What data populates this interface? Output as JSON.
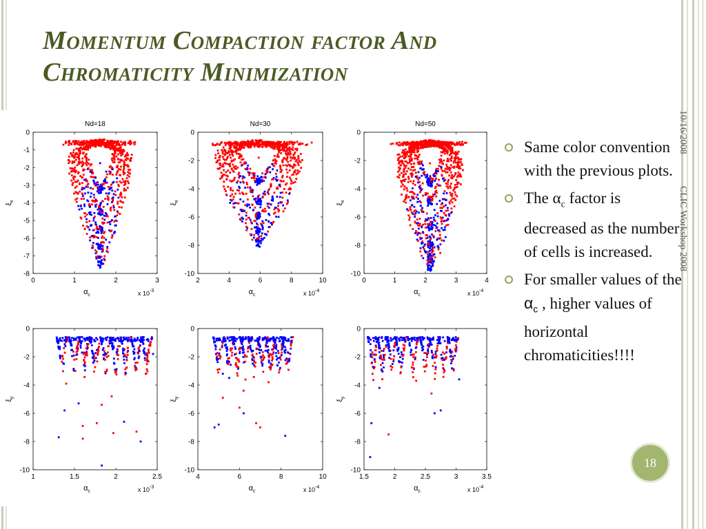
{
  "title_line1": "Momentum Compaction factor And",
  "title_line2": "Chromaticity Minimization",
  "date": "10/16/2008",
  "event": "CLIC Workshop 2008",
  "page_number": "18",
  "bullets": [
    {
      "text": "Same color convention with the previous plots."
    },
    {
      "text_before": "The α",
      "sub": "c",
      "text_after": " factor is decreased as the number of cells is increased."
    },
    {
      "text_before": "For smaller values of the ",
      "alpha": "α",
      "sub": "c",
      "text_after": " , higher values of horizontal chromaticities!!!!"
    }
  ],
  "colors": {
    "series_a": "#ff0000",
    "series_b": "#0000ff",
    "title": "#4c5a24",
    "accent": "#a2b66f"
  },
  "chart_data": [
    {
      "type": "scatter",
      "title": "Nd=18",
      "xlabel": "α",
      "xlabel_sub": "c",
      "ylabel": "ξ",
      "ylabel_sub": "x",
      "xmult": "x 10",
      "xmult_exp": "-3",
      "xlim": [
        0,
        3
      ],
      "ylim": [
        -8,
        0
      ],
      "xticks": [
        0,
        1,
        2,
        3
      ],
      "yticks": [
        0,
        -1,
        -2,
        -3,
        -4,
        -5,
        -6,
        -7,
        -8
      ],
      "loops": [
        {
          "center": 1.62,
          "halfwidth": 0.46,
          "top": -0.6,
          "bottom": -3.3
        },
        {
          "center": 1.62,
          "halfwidth": 0.62,
          "top": -0.6,
          "bottom": -4.5
        },
        {
          "center": 1.62,
          "halfwidth": 0.74,
          "top": -0.6,
          "bottom": -5.6
        },
        {
          "center": 1.62,
          "halfwidth": 0.84,
          "top": -0.6,
          "bottom": -6.6
        },
        {
          "center": 1.62,
          "halfwidth": 0.92,
          "top": -0.6,
          "bottom": -7.5
        }
      ],
      "center_point": [
        1.62,
        -1.75
      ]
    },
    {
      "type": "scatter",
      "title": "Nd=30",
      "xlabel": "α",
      "xlabel_sub": "c",
      "ylabel": "ξ",
      "ylabel_sub": "x",
      "xmult": "x 10",
      "xmult_exp": "-4",
      "xlim": [
        2,
        10
      ],
      "ylim": [
        -10,
        0
      ],
      "xticks": [
        2,
        4,
        6,
        8,
        10
      ],
      "yticks": [
        0,
        -2,
        -4,
        -6,
        -8,
        -10
      ],
      "loops": [
        {
          "center": 5.9,
          "halfwidth": 1.7,
          "top": -0.8,
          "bottom": -3.5
        },
        {
          "center": 5.9,
          "halfwidth": 2.3,
          "top": -0.8,
          "bottom": -4.9
        },
        {
          "center": 5.9,
          "halfwidth": 2.7,
          "top": -0.8,
          "bottom": -6.0
        },
        {
          "center": 5.9,
          "halfwidth": 3.1,
          "top": -0.8,
          "bottom": -7.1
        },
        {
          "center": 5.9,
          "halfwidth": 3.4,
          "top": -0.8,
          "bottom": -7.9
        }
      ],
      "center_point": [
        5.9,
        -1.8
      ]
    },
    {
      "type": "scatter",
      "title": "Nd=50",
      "xlabel": "α",
      "xlabel_sub": "c",
      "ylabel": "ξ",
      "ylabel_sub": "x",
      "xmult": "x 10",
      "xmult_exp": "-4",
      "xlim": [
        0,
        4
      ],
      "ylim": [
        -10,
        0
      ],
      "xticks": [
        0,
        1,
        2,
        3,
        4
      ],
      "yticks": [
        0,
        -2,
        -4,
        -6,
        -8,
        -10
      ],
      "loops": [
        {
          "center": 2.15,
          "halfwidth": 0.6,
          "top": -0.8,
          "bottom": -3.6
        },
        {
          "center": 2.15,
          "halfwidth": 0.82,
          "top": -0.8,
          "bottom": -5.0
        },
        {
          "center": 2.15,
          "halfwidth": 0.98,
          "top": -0.8,
          "bottom": -6.7
        },
        {
          "center": 2.15,
          "halfwidth": 1.1,
          "top": -0.8,
          "bottom": -8.0
        },
        {
          "center": 2.15,
          "halfwidth": 1.22,
          "top": -0.8,
          "bottom": -9.0
        },
        {
          "center": 2.15,
          "halfwidth": 1.3,
          "top": -0.8,
          "bottom": -9.7
        }
      ],
      "center_point": [
        2.15,
        -2.2
      ]
    },
    {
      "type": "scatter",
      "title": "",
      "xlabel": "α",
      "xlabel_sub": "c",
      "ylabel": "ξ",
      "ylabel_sub": "y",
      "xmult": "x 10",
      "xmult_exp": "-3",
      "xlim": [
        1,
        2.5
      ],
      "ylim": [
        -10,
        0
      ],
      "xticks": [
        1,
        1.5,
        2,
        2.5
      ],
      "xtick_labels": [
        "1",
        "1.5",
        "2",
        "2.5"
      ],
      "yticks": [
        0,
        -2,
        -4,
        -6,
        -8,
        -10
      ],
      "clusters": [
        1.35,
        1.5,
        1.62,
        1.75,
        1.88,
        2.0,
        2.12,
        2.25,
        2.37
      ],
      "outliers_red": [
        [
          1.4,
          -3.9
        ],
        [
          1.6,
          -6.9
        ],
        [
          1.6,
          -7.8
        ],
        [
          1.77,
          -6.7
        ],
        [
          1.83,
          -5.4
        ],
        [
          1.97,
          -7.4
        ],
        [
          2.25,
          -7.3
        ],
        [
          1.95,
          -4.8
        ]
      ],
      "outliers_blue": [
        [
          1.31,
          -7.7
        ],
        [
          1.38,
          -5.8
        ],
        [
          1.55,
          -5.3
        ],
        [
          1.83,
          -9.7
        ],
        [
          2.1,
          -6.6
        ],
        [
          2.3,
          -8.0
        ],
        [
          2.45,
          -1.8
        ]
      ]
    },
    {
      "type": "scatter",
      "title": "",
      "xlabel": "α",
      "xlabel_sub": "c",
      "ylabel": "ξ",
      "ylabel_sub": "y",
      "xmult": "x 10",
      "xmult_exp": "-4",
      "xlim": [
        4,
        10
      ],
      "ylim": [
        -10,
        0
      ],
      "xticks": [
        4,
        6,
        8,
        10
      ],
      "yticks": [
        0,
        -2,
        -4,
        -6,
        -8,
        -10
      ],
      "clusters": [
        5.0,
        5.5,
        5.9,
        6.3,
        6.7,
        7.1,
        7.5,
        7.9,
        8.3
      ],
      "outliers_red": [
        [
          5.2,
          -4.9
        ],
        [
          6.0,
          -5.6
        ],
        [
          6.8,
          -6.7
        ],
        [
          7.0,
          -7.0
        ],
        [
          6.2,
          -4.4
        ],
        [
          7.4,
          -3.8
        ]
      ],
      "outliers_blue": [
        [
          4.8,
          -7.0
        ],
        [
          5.0,
          -6.8
        ],
        [
          6.2,
          -6.0
        ],
        [
          8.2,
          -7.6
        ],
        [
          5.2,
          -3.2
        ]
      ]
    },
    {
      "type": "scatter",
      "title": "",
      "xlabel": "α",
      "xlabel_sub": "c",
      "ylabel": "ξ",
      "ylabel_sub": "y",
      "xmult": "x 10",
      "xmult_exp": "-4",
      "xlim": [
        1.5,
        3.5
      ],
      "ylim": [
        -10,
        0
      ],
      "xticks": [
        1.5,
        2,
        2.5,
        3,
        3.5
      ],
      "xtick_labels": [
        "1.5",
        "2",
        "2.5",
        "3",
        "3.5"
      ],
      "yticks": [
        0,
        -2,
        -4,
        -6,
        -8,
        -10
      ],
      "clusters": [
        1.65,
        1.8,
        1.95,
        2.1,
        2.3,
        2.5,
        2.65,
        2.8,
        2.95
      ],
      "outliers_red": [
        [
          1.9,
          -7.5
        ],
        [
          2.6,
          -4.6
        ],
        [
          2.1,
          -3.1
        ],
        [
          2.35,
          -3.7
        ]
      ],
      "outliers_blue": [
        [
          1.6,
          -9.1
        ],
        [
          1.62,
          -6.7
        ],
        [
          2.65,
          -6.0
        ],
        [
          2.75,
          -5.8
        ],
        [
          3.05,
          -3.6
        ],
        [
          1.75,
          -4.2
        ]
      ]
    }
  ]
}
